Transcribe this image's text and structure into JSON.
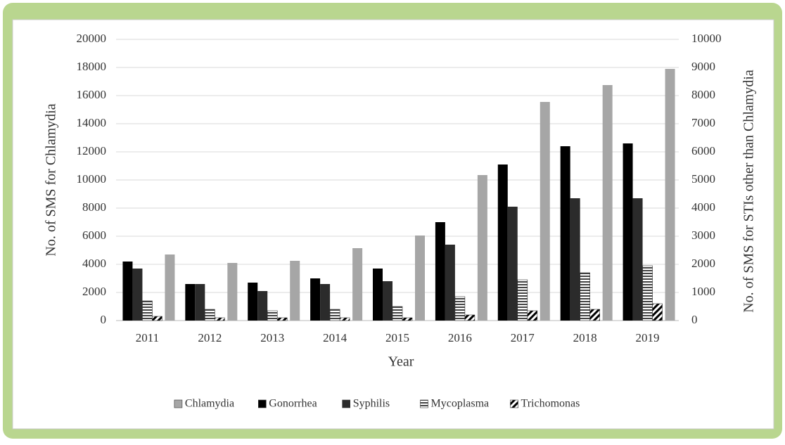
{
  "chart_data": {
    "type": "bar",
    "categories": [
      "2011",
      "2012",
      "2013",
      "2014",
      "2015",
      "2016",
      "2017",
      "2018",
      "2019"
    ],
    "x_label": "Year",
    "y_label": "No. of SMS for Chlamydia",
    "y2_label": "No. of  SMS for STIs other than Chlamydia",
    "ylim": [
      0,
      20000
    ],
    "yticks": [
      0,
      2000,
      4000,
      6000,
      8000,
      10000,
      12000,
      14000,
      16000,
      18000,
      20000
    ],
    "y2lim": [
      0,
      10000
    ],
    "y2ticks": [
      0,
      1000,
      2000,
      3000,
      4000,
      5000,
      6000,
      7000,
      8000,
      9000,
      10000
    ],
    "grid": true,
    "legend": "bottom",
    "series": [
      {
        "name": "Chlamydia",
        "color": "#a6a6a6",
        "values": [
          4700,
          4100,
          4250,
          5150,
          6050,
          10350,
          15550,
          16750,
          17900
        ]
      },
      {
        "name": "Gonorrhea",
        "color": "#000000",
        "axis": "y2",
        "values": [
          2100,
          1300,
          1350,
          1500,
          1850,
          3500,
          5550,
          6200,
          6300
        ]
      },
      {
        "name": "Syphilis",
        "color": "#2b2b2b",
        "axis": "y2",
        "values": [
          1850,
          1300,
          1050,
          1300,
          1400,
          2700,
          4050,
          4350,
          4350
        ]
      },
      {
        "name": "Mycoplasma",
        "color": "#444444",
        "pattern": "horizontal",
        "axis": "y2",
        "values": [
          700,
          400,
          350,
          400,
          500,
          850,
          1450,
          1700,
          1950
        ]
      },
      {
        "name": "Trichomonas",
        "color": "#000000",
        "pattern": "diagonal",
        "axis": "y2",
        "values": [
          150,
          100,
          100,
          100,
          100,
          200,
          350,
          400,
          600
        ]
      }
    ]
  }
}
